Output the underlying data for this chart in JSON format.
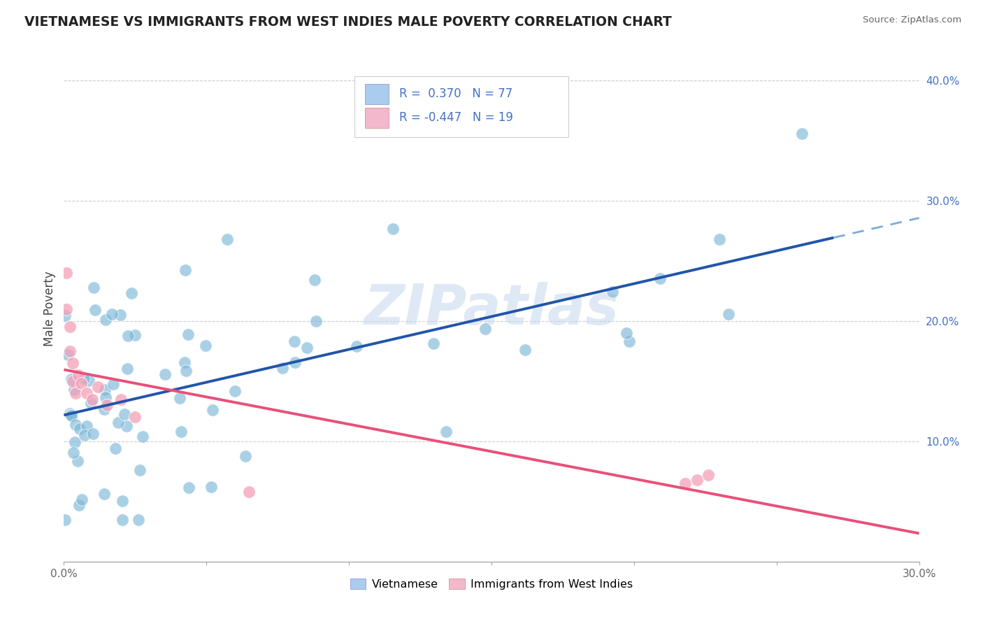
{
  "title": "VIETNAMESE VS IMMIGRANTS FROM WEST INDIES MALE POVERTY CORRELATION CHART",
  "source_text": "Source: ZipAtlas.com",
  "ylabel": "Male Poverty",
  "xlim": [
    0.0,
    0.3
  ],
  "ylim": [
    0.0,
    0.42
  ],
  "xticks": [
    0.0,
    0.05,
    0.1,
    0.15,
    0.2,
    0.25,
    0.3
  ],
  "xtick_labels": [
    "0.0%",
    "",
    "",
    "",
    "",
    "",
    "30.0%"
  ],
  "yticks": [
    0.1,
    0.2,
    0.3,
    0.4
  ],
  "ytick_labels": [
    "10.0%",
    "20.0%",
    "30.0%",
    "40.0%"
  ],
  "blue_color": "#7db8d8",
  "pink_color": "#f4a0b8",
  "line_blue": "#2255aa",
  "line_pink": "#e8507a",
  "line_blue_dashed": "#7aacda",
  "watermark": "ZIPatlas",
  "watermark_color": "#c5d8ee",
  "background_color": "#ffffff",
  "grid_color": "#cccccc",
  "title_color": "#222222",
  "source_color": "#666666",
  "ylabel_color": "#444444",
  "ytick_color": "#4472c4",
  "xtick_color": "#666666",
  "legend_text_color": "#4472c4",
  "legend_border_color": "#cccccc",
  "legend_sq_blue": "#aaccee",
  "legend_sq_pink": "#f4b8cc"
}
